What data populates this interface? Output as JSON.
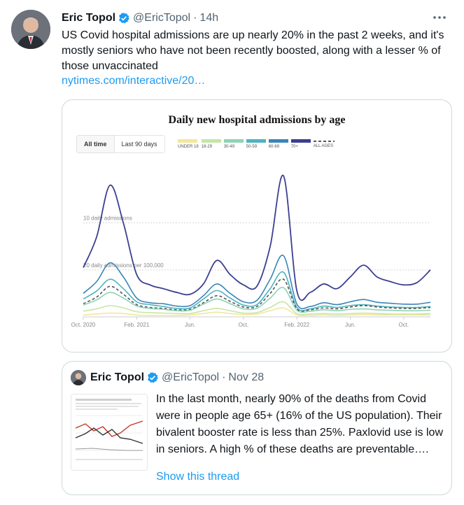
{
  "tweet": {
    "author_name": "Eric Topol",
    "handle": "@EricTopol",
    "separator": "·",
    "time": "14h",
    "text": "US Covid hospital admissions are up nearly 20% in the past 2 weeks, and it's mostly seniors who have not been recently boosted, along with a lesser % of those unvaccinated",
    "link_text": "nytimes.com/interactive/20…",
    "more_icon": "more-horizontal-icon",
    "verified_icon": "verified-badge-icon",
    "verified_color": "#1d9bf0"
  },
  "chart_card": {
    "title": "Daily new hospital admissions by age",
    "buttons": [
      "All time",
      "Last 90 days"
    ],
    "active_button": "All time",
    "legend": [
      {
        "label": "UNDER 18",
        "color": "#f3e79b"
      },
      {
        "label": "18-29",
        "color": "#c5e6a6"
      },
      {
        "label": "30-49",
        "color": "#8fd3b5"
      },
      {
        "label": "50-59",
        "color": "#4fb3c0"
      },
      {
        "label": "60-69",
        "color": "#3a85b8"
      },
      {
        "label": "70+",
        "color": "#3b3f8f"
      },
      {
        "label": "ALL AGES",
        "color": "#555555"
      }
    ]
  },
  "chart_data": {
    "type": "line",
    "title": "Daily new hospital admissions by age",
    "ylabel_ticks": [
      "20 daily admissions per 100,000",
      "10 daily admissions"
    ],
    "y_ticks": [
      10,
      20
    ],
    "ylim": [
      0,
      32
    ],
    "x_tick_labels": [
      "Oct. 2020",
      "Feb. 2021",
      "Jun.",
      "Oct.",
      "Feb. 2022",
      "Jun.",
      "Oct."
    ],
    "x_tick_positions": [
      0,
      4,
      8,
      12,
      16,
      20,
      24
    ],
    "xlim": [
      0,
      26
    ],
    "grid": true,
    "legend_position": "top",
    "x": [
      0,
      1,
      2,
      3,
      4,
      5,
      6,
      7,
      8,
      9,
      10,
      11,
      12,
      13,
      14,
      15,
      16,
      17,
      18,
      19,
      20,
      21,
      22,
      23,
      24,
      25,
      26
    ],
    "series": [
      {
        "name": "70+",
        "color": "#3b3f8f",
        "values": [
          10.5,
          17,
          28,
          20,
          9,
          6.8,
          6,
          5.2,
          4.8,
          7,
          12,
          9,
          6.8,
          6.5,
          15,
          30,
          5.5,
          5.2,
          7,
          6,
          8.5,
          11,
          8.5,
          7.5,
          6.8,
          7.3,
          10
        ]
      },
      {
        "name": "60-69",
        "color": "#3a85b8",
        "values": [
          5,
          7.5,
          11.5,
          8.5,
          4,
          3,
          2.8,
          2.3,
          2.4,
          4.5,
          7,
          5,
          3.2,
          3.5,
          8,
          13,
          2.7,
          2.2,
          3,
          2.6,
          3.2,
          3.7,
          3.1,
          2.9,
          2.7,
          2.7,
          3.1
        ]
      },
      {
        "name": "50-59",
        "color": "#4fb3c0",
        "values": [
          3.8,
          5.5,
          8,
          6,
          3.2,
          2.6,
          2.2,
          1.8,
          1.9,
          3.8,
          5.6,
          4,
          2.5,
          2.6,
          6,
          9.5,
          2,
          1.7,
          2.3,
          2,
          2.4,
          2.6,
          2.3,
          2.1,
          2,
          2,
          2.2
        ]
      },
      {
        "name": "ALL AGES",
        "color": "#555555",
        "values": [
          2.8,
          4.2,
          6.5,
          4.8,
          2.6,
          2,
          1.8,
          1.5,
          1.6,
          3,
          4.5,
          3.3,
          2.1,
          2.2,
          5,
          8,
          1.7,
          1.5,
          1.9,
          1.7,
          2.1,
          2.4,
          2.1,
          1.9,
          1.8,
          1.8,
          2
        ]
      },
      {
        "name": "30-49",
        "color": "#8fd3b5",
        "values": [
          2.5,
          3.6,
          5.2,
          4,
          2.3,
          1.8,
          1.6,
          1.3,
          1.4,
          2.7,
          3.8,
          2.8,
          1.7,
          1.8,
          4,
          6.2,
          1.4,
          1.2,
          1.5,
          1.3,
          1.6,
          1.7,
          1.5,
          1.4,
          1.3,
          1.3,
          1.4
        ]
      },
      {
        "name": "18-29",
        "color": "#c5e6a6",
        "values": [
          1.2,
          1.7,
          2.4,
          1.9,
          1.1,
          0.9,
          0.8,
          0.7,
          0.7,
          1.3,
          1.8,
          1.3,
          0.8,
          0.9,
          2,
          3.2,
          0.7,
          0.6,
          0.7,
          0.6,
          0.7,
          0.8,
          0.7,
          0.6,
          0.6,
          0.6,
          0.7
        ]
      },
      {
        "name": "UNDER 18",
        "color": "#f3e79b",
        "values": [
          0.4,
          0.6,
          0.8,
          0.7,
          0.4,
          0.3,
          0.3,
          0.3,
          0.4,
          0.7,
          1,
          0.7,
          0.5,
          0.6,
          1.3,
          1.9,
          0.4,
          0.3,
          0.4,
          0.3,
          0.4,
          0.5,
          0.4,
          0.4,
          0.4,
          0.4,
          0.4
        ]
      }
    ]
  },
  "quoted_tweet": {
    "author_name": "Eric Topol",
    "handle": "@EricTopol",
    "separator": "·",
    "time": "Nov 28",
    "text": "In the last month, nearly 90% of the deaths from Covid were in people age 65+ (16% of the US population). Their bivalent booster rate is less than 25%. Paxlovid use is low in seniors. A high % of these deaths are preventable….",
    "show_thread": "Show this thread"
  }
}
